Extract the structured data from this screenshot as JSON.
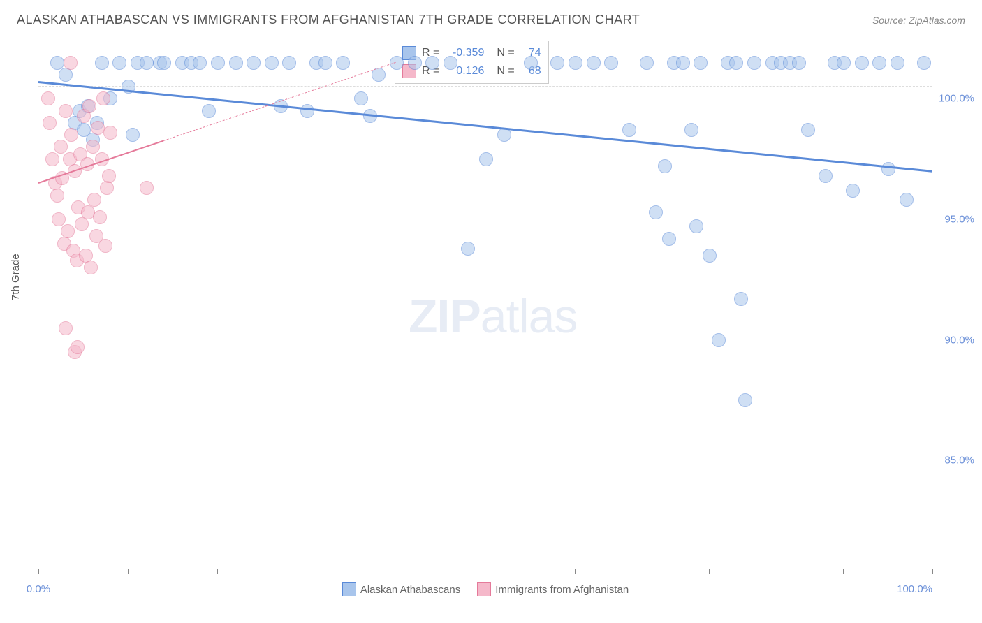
{
  "title": "ALASKAN ATHABASCAN VS IMMIGRANTS FROM AFGHANISTAN 7TH GRADE CORRELATION CHART",
  "source": "Source: ZipAtlas.com",
  "y_axis_label": "7th Grade",
  "watermark_zip": "ZIP",
  "watermark_atlas": "atlas",
  "chart": {
    "type": "scatter",
    "xlim": [
      0,
      100
    ],
    "ylim": [
      80,
      102
    ],
    "y_ticks": [
      85.0,
      90.0,
      95.0,
      100.0
    ],
    "y_tick_labels": [
      "85.0%",
      "90.0%",
      "95.0%",
      "100.0%"
    ],
    "x_ticks": [
      0,
      10,
      20,
      30,
      45,
      60,
      75,
      90,
      100
    ],
    "x_tick_labels": {
      "0": "0.0%",
      "100": "100.0%"
    },
    "background_color": "#ffffff",
    "grid_color": "#dddddd",
    "series": [
      {
        "name": "Alaskan Athabascans",
        "color_fill": "#a8c5ec",
        "color_stroke": "#5a8ad8",
        "trend": {
          "x1": 0,
          "y1": 100.2,
          "x2": 100,
          "y2": 96.5,
          "solid_until_x": 100,
          "width": 3
        },
        "points": [
          [
            2,
            101
          ],
          [
            3,
            100.5
          ],
          [
            4,
            98.5
          ],
          [
            4.5,
            99
          ],
          [
            5,
            98.2
          ],
          [
            5.5,
            99.2
          ],
          [
            6,
            97.8
          ],
          [
            6.5,
            98.5
          ],
          [
            7,
            101
          ],
          [
            8,
            99.5
          ],
          [
            9,
            101
          ],
          [
            10,
            100
          ],
          [
            10.5,
            98
          ],
          [
            11,
            101
          ],
          [
            12,
            101
          ],
          [
            13.5,
            101
          ],
          [
            14,
            101
          ],
          [
            16,
            101
          ],
          [
            17,
            101
          ],
          [
            18,
            101
          ],
          [
            19,
            99
          ],
          [
            20,
            101
          ],
          [
            22,
            101
          ],
          [
            24,
            101
          ],
          [
            26,
            101
          ],
          [
            27,
            99.2
          ],
          [
            28,
            101
          ],
          [
            30,
            99
          ],
          [
            31,
            101
          ],
          [
            32,
            101
          ],
          [
            34,
            101
          ],
          [
            36,
            99.5
          ],
          [
            37,
            98.8
          ],
          [
            38,
            100.5
          ],
          [
            40,
            101
          ],
          [
            42,
            101
          ],
          [
            44,
            101
          ],
          [
            46,
            101
          ],
          [
            48,
            93.3
          ],
          [
            50,
            97
          ],
          [
            52,
            98
          ],
          [
            55,
            101
          ],
          [
            58,
            101
          ],
          [
            60,
            101
          ],
          [
            62,
            101
          ],
          [
            64,
            101
          ],
          [
            66,
            98.2
          ],
          [
            68,
            101
          ],
          [
            69,
            94.8
          ],
          [
            70,
            96.7
          ],
          [
            70.5,
            93.7
          ],
          [
            71,
            101
          ],
          [
            72,
            101
          ],
          [
            73,
            98.2
          ],
          [
            73.5,
            94.2
          ],
          [
            74,
            101
          ],
          [
            75,
            93
          ],
          [
            76,
            89.5
          ],
          [
            77,
            101
          ],
          [
            78,
            101
          ],
          [
            78.5,
            91.2
          ],
          [
            79,
            87
          ],
          [
            80,
            101
          ],
          [
            82,
            101
          ],
          [
            83,
            101
          ],
          [
            84,
            101
          ],
          [
            85,
            101
          ],
          [
            86,
            98.2
          ],
          [
            88,
            96.3
          ],
          [
            89,
            101
          ],
          [
            90,
            101
          ],
          [
            91,
            95.7
          ],
          [
            92,
            101
          ],
          [
            94,
            101
          ],
          [
            95,
            96.6
          ],
          [
            96,
            101
          ],
          [
            97,
            95.3
          ],
          [
            99,
            101
          ]
        ]
      },
      {
        "name": "Immigrants from Afghanistan",
        "color_fill": "#f5b8ca",
        "color_stroke": "#e57a9a",
        "trend": {
          "x1": 0,
          "y1": 96,
          "x2": 40,
          "y2": 101,
          "solid_until_x": 14,
          "width": 2
        },
        "points": [
          [
            1,
            99.5
          ],
          [
            1.2,
            98.5
          ],
          [
            1.5,
            97
          ],
          [
            1.8,
            96
          ],
          [
            2,
            95.5
          ],
          [
            2.2,
            94.5
          ],
          [
            2.4,
            97.5
          ],
          [
            2.6,
            96.2
          ],
          [
            2.8,
            93.5
          ],
          [
            3,
            99
          ],
          [
            3.2,
            94
          ],
          [
            3.4,
            97
          ],
          [
            3.5,
            101
          ],
          [
            3.6,
            98
          ],
          [
            3.8,
            93.2
          ],
          [
            4,
            96.5
          ],
          [
            4.2,
            92.8
          ],
          [
            4.4,
            95
          ],
          [
            4.6,
            97.2
          ],
          [
            4.8,
            94.3
          ],
          [
            5,
            98.8
          ],
          [
            5.2,
            93
          ],
          [
            5.4,
            96.8
          ],
          [
            5.5,
            94.8
          ],
          [
            5.6,
            99.2
          ],
          [
            5.8,
            92.5
          ],
          [
            6,
            97.5
          ],
          [
            6.2,
            95.3
          ],
          [
            6.4,
            93.8
          ],
          [
            6.6,
            98.3
          ],
          [
            6.8,
            94.6
          ],
          [
            7,
            97
          ],
          [
            7.2,
            99.5
          ],
          [
            7.4,
            93.4
          ],
          [
            7.6,
            95.8
          ],
          [
            7.8,
            96.3
          ],
          [
            8,
            98.1
          ],
          [
            3,
            90
          ],
          [
            4,
            89
          ],
          [
            4.3,
            89.2
          ],
          [
            12,
            95.8
          ]
        ]
      }
    ]
  },
  "stats": {
    "rows": [
      {
        "swatch_fill": "#a8c5ec",
        "swatch_stroke": "#5a8ad8",
        "r_label": "R =",
        "r": "-0.359",
        "n_label": "N =",
        "n": "74"
      },
      {
        "swatch_fill": "#f5b8ca",
        "swatch_stroke": "#e57a9a",
        "r_label": "R =",
        "r": "0.126",
        "n_label": "N =",
        "n": "68"
      }
    ]
  },
  "legend": [
    {
      "swatch_fill": "#a8c5ec",
      "swatch_stroke": "#5a8ad8",
      "label": "Alaskan Athabascans"
    },
    {
      "swatch_fill": "#f5b8ca",
      "swatch_stroke": "#e57a9a",
      "label": "Immigrants from Afghanistan"
    }
  ]
}
